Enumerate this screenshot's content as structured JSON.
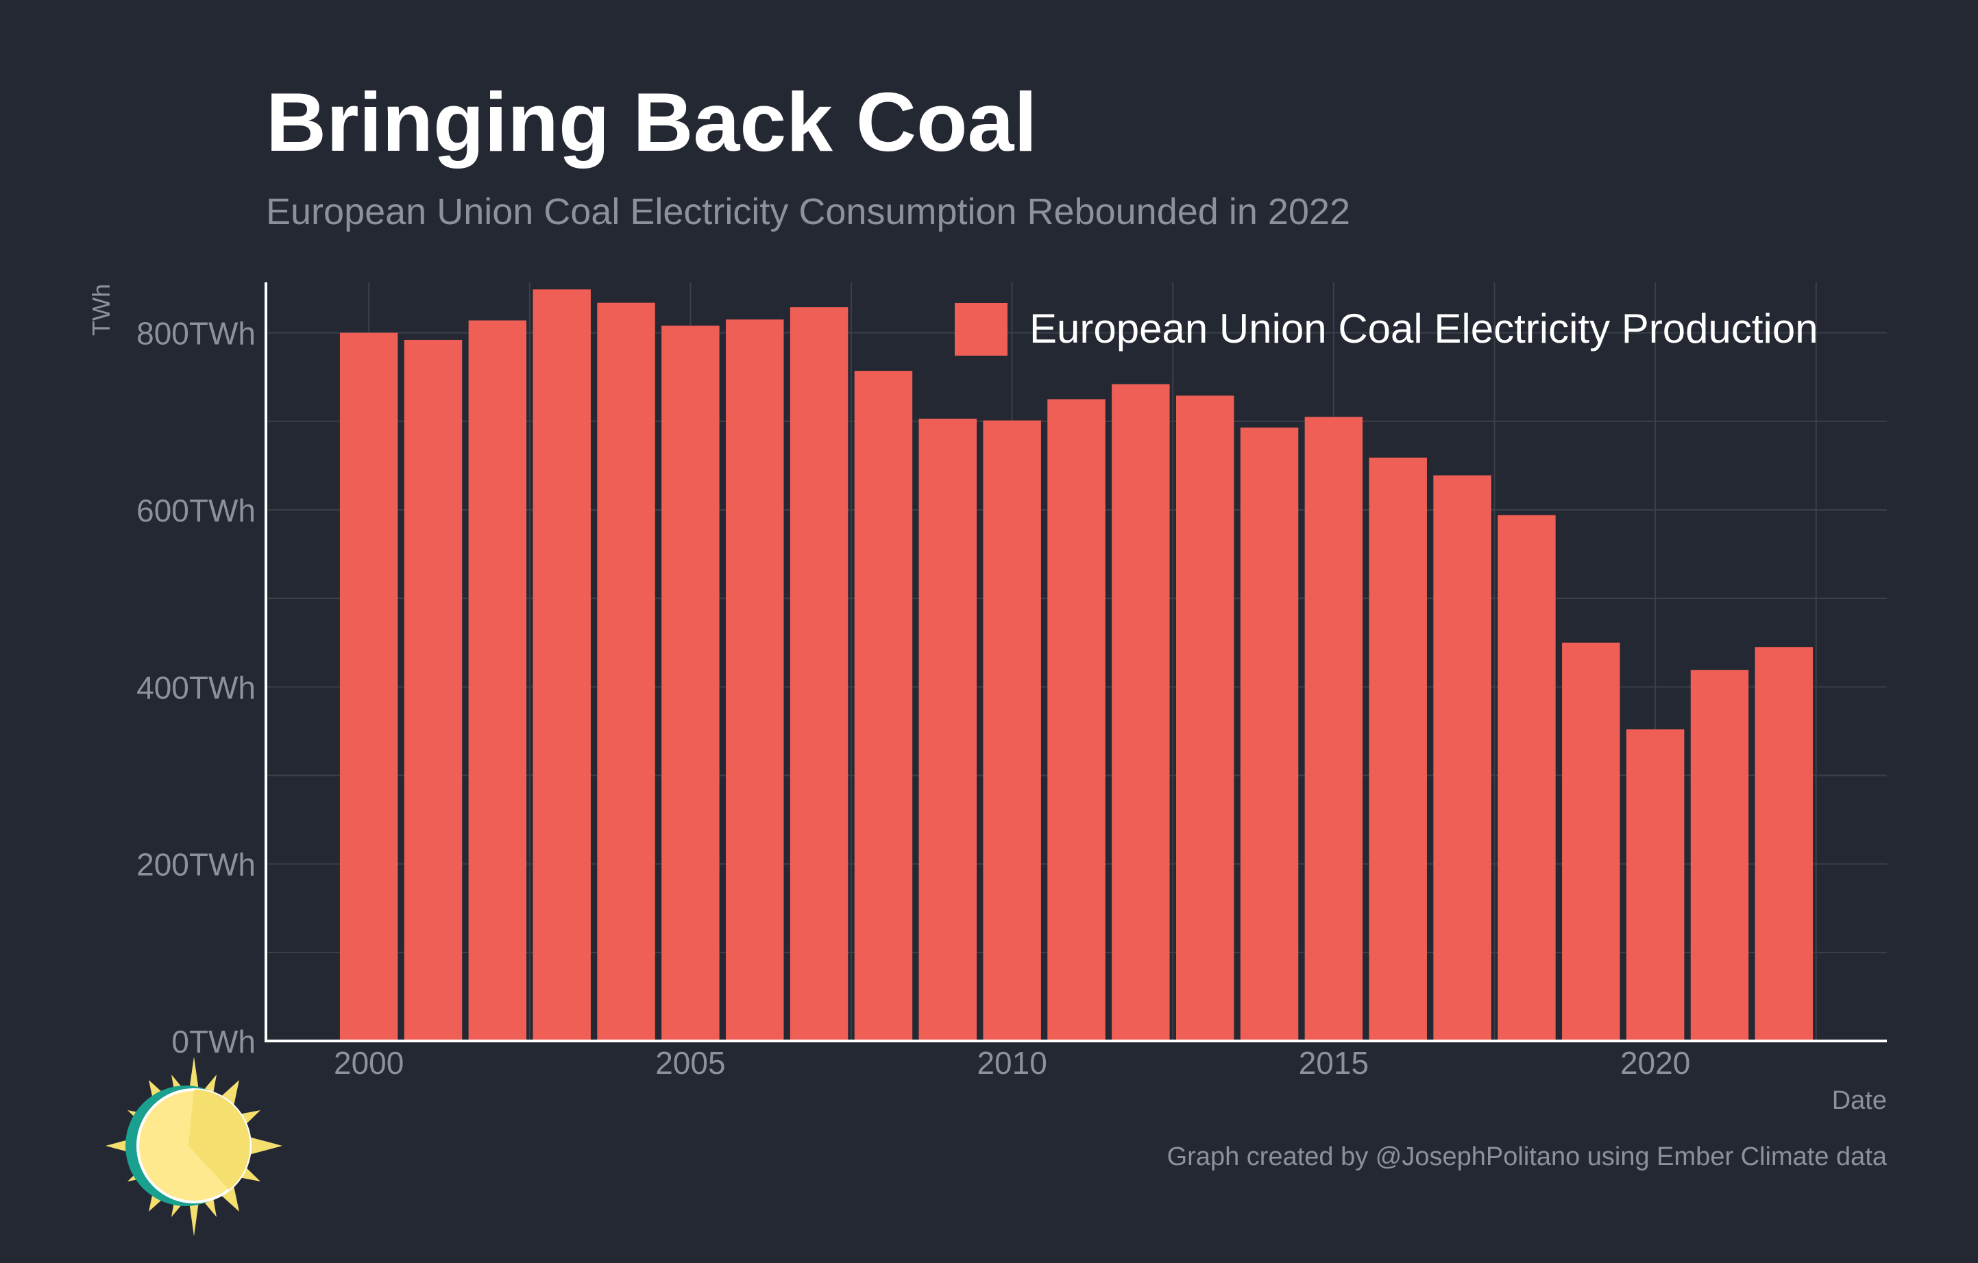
{
  "title": "Bringing Back Coal",
  "subtitle": "European Union Coal Electricity Consumption Rebounded in 2022",
  "caption": "Graph created by @JosephPolitano using Ember Climate data",
  "colors": {
    "background": "#242832",
    "bar": "#ef5f56",
    "title": "#ffffff",
    "muted": "#8d9199",
    "grid": "#3b3f48",
    "axis": "#ffffff",
    "logo_ring": "#19a08f",
    "logo_sun": "#f5df6f",
    "logo_face": "#ffe98e"
  },
  "logo": {
    "icon": "sun-icon"
  },
  "chart_data": {
    "type": "bar",
    "title": "Bringing Back Coal",
    "subtitle": "European Union Coal Electricity Consumption Rebounded in 2022",
    "xlabel": "Date",
    "ylabel": "TWh",
    "x": [
      2000,
      2001,
      2002,
      2003,
      2004,
      2005,
      2006,
      2007,
      2008,
      2009,
      2010,
      2011,
      2012,
      2013,
      2014,
      2015,
      2016,
      2017,
      2018,
      2019,
      2020,
      2021,
      2022
    ],
    "series": [
      {
        "name": "European Union Coal Electricity Production",
        "values": [
          800,
          792,
          814,
          849,
          834,
          808,
          815,
          829,
          757,
          703,
          701,
          725,
          742,
          729,
          693,
          705,
          659,
          639,
          594,
          450,
          352,
          419,
          445
        ]
      }
    ],
    "ylim": [
      0,
      857
    ],
    "xlim": [
      1998.4,
      2023.6
    ],
    "yticks": [
      0,
      200,
      400,
      600,
      800
    ],
    "ytick_labels": [
      "0TWh",
      "200TWh",
      "400TWh",
      "600TWh",
      "800TWh"
    ],
    "xticks": [
      2000,
      2005,
      2010,
      2015,
      2020
    ],
    "xtick_labels": [
      "2000",
      "2005",
      "2010",
      "2015",
      "2020"
    ],
    "grid": true,
    "legend_position": "top-right"
  }
}
